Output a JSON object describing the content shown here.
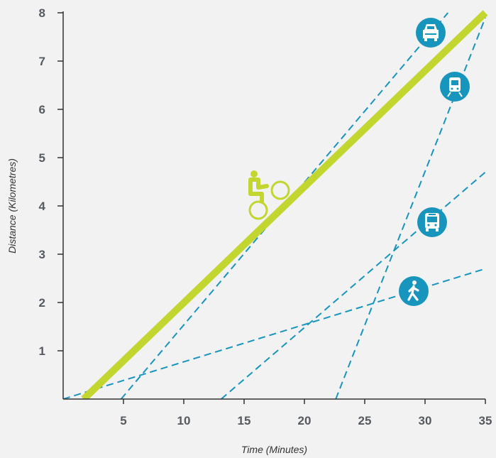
{
  "chart_data": {
    "type": "line",
    "title": "",
    "xlabel": "Time (Minutes)",
    "ylabel": "Distance (Kilometres)",
    "xlim": [
      0,
      35
    ],
    "ylim": [
      0,
      8
    ],
    "xticks": [
      5,
      10,
      15,
      20,
      25,
      30,
      35
    ],
    "yticks": [
      1,
      2,
      3,
      4,
      5,
      6,
      7,
      8
    ],
    "grid": false,
    "legend": "icons placed near line ends",
    "series": [
      {
        "icon": "bicycle-icon",
        "style": "solid",
        "color": "#c3d52f",
        "x": [
          1.7,
          35.0
        ],
        "y": [
          0.0,
          8.0
        ]
      },
      {
        "icon": "car-icon",
        "style": "dashed",
        "color": "#1795bd",
        "x": [
          4.8,
          31.9
        ],
        "y": [
          0.0,
          8.0
        ]
      },
      {
        "icon": "train-icon",
        "style": "dashed",
        "color": "#1795bd",
        "x": [
          22.6,
          35.0
        ],
        "y": [
          0.0,
          7.9
        ]
      },
      {
        "icon": "bus-icon",
        "style": "dashed",
        "color": "#1795bd",
        "x": [
          13.1,
          35.0
        ],
        "y": [
          0.0,
          4.7
        ]
      },
      {
        "icon": "walking-icon",
        "style": "dashed",
        "color": "#1795bd",
        "x": [
          0.0,
          35.0
        ],
        "y": [
          0.0,
          2.7
        ]
      }
    ]
  },
  "colors": {
    "accent": "#1795bd",
    "bike": "#c3d52f",
    "axis": "#333333",
    "text": "#555a60"
  }
}
